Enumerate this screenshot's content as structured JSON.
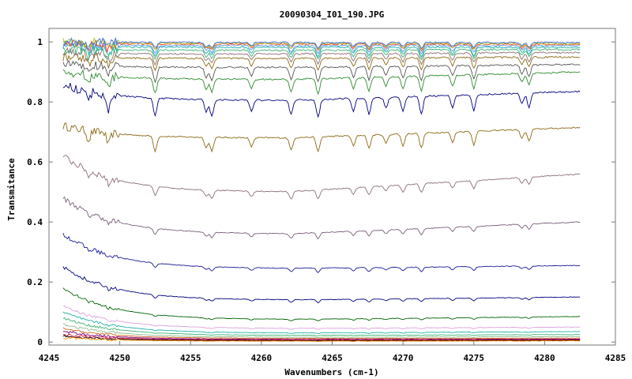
{
  "chart_data": {
    "type": "line",
    "title": "20090304_I01_190.JPG",
    "xlabel": "Wavenumbers (cm-1)",
    "ylabel": "Transmitance",
    "xlim": [
      4245,
      4285
    ],
    "ylim": [
      -0.01,
      1.045
    ],
    "x_ticks": [
      4245,
      4250,
      4255,
      4260,
      4265,
      4270,
      4275,
      4280,
      4285
    ],
    "y_ticks": [
      0,
      0.2,
      0.4,
      0.6,
      0.8,
      1
    ],
    "x_tick_labels": [
      "4245",
      "4250",
      "4255",
      "4260",
      "4265",
      "4270",
      "4275",
      "4280",
      "4285"
    ],
    "y_tick_labels": [
      "0",
      "0.2",
      "0.4",
      "0.6",
      "0.8",
      "1"
    ],
    "grid": false,
    "legend": "none",
    "x_range_of_data": [
      4246,
      4282.5
    ],
    "absorption_lines": [
      4247.8,
      4249.2,
      4252.5,
      4256.1,
      4256.5,
      4259.3,
      4262.1,
      4264.0,
      4266.5,
      4267.6,
      4268.8,
      4270.0,
      4271.3,
      4273.5,
      4275.0,
      4278.4,
      4278.9
    ],
    "series": [
      {
        "start": 0.72,
        "plateau": 0.68,
        "end": 0.715,
        "depth": 0.05,
        "color": "#8b6914"
      },
      {
        "start": 0.62,
        "plateau": 0.5,
        "end": 0.56,
        "depth": 0.03,
        "color": "#8b6f75"
      },
      {
        "start": 0.48,
        "plateau": 0.36,
        "end": 0.4,
        "depth": 0.02,
        "color": "#7a5f7a"
      },
      {
        "start": 0.36,
        "plateau": 0.245,
        "end": 0.255,
        "depth": 0.015,
        "color": "#1a1a99"
      },
      {
        "start": 0.25,
        "plateau": 0.14,
        "end": 0.15,
        "depth": 0.01,
        "color": "#000080"
      },
      {
        "start": 0.18,
        "plateau": 0.075,
        "end": 0.085,
        "depth": 0.006,
        "color": "#006400"
      },
      {
        "start": 0.12,
        "plateau": 0.045,
        "end": 0.05,
        "depth": 0.004,
        "color": "#dda0dd"
      },
      {
        "start": 0.1,
        "plateau": 0.03,
        "end": 0.035,
        "depth": 0.003,
        "color": "#20b2aa"
      },
      {
        "start": 0.08,
        "plateau": 0.022,
        "end": 0.025,
        "depth": 0.002,
        "color": "#3cb371"
      },
      {
        "start": 0.06,
        "plateau": 0.016,
        "end": 0.018,
        "depth": 0.002,
        "color": "#8fbc8f"
      },
      {
        "start": 0.045,
        "plateau": 0.012,
        "end": 0.013,
        "depth": 0.001,
        "color": "#d2691e"
      },
      {
        "start": 0.035,
        "plateau": 0.009,
        "end": 0.01,
        "depth": 0.001,
        "color": "#800080"
      },
      {
        "start": 0.025,
        "plateau": 0.007,
        "end": 0.008,
        "depth": 0.001,
        "color": "#dc143c"
      },
      {
        "start": 0.02,
        "plateau": 0.005,
        "end": 0.006,
        "depth": 0.001,
        "color": "#000000"
      },
      {
        "start": 0.015,
        "plateau": 0.003,
        "end": 0.004,
        "depth": 0.001,
        "color": "#ff8c00"
      },
      {
        "start": 0.855,
        "plateau": 0.805,
        "end": 0.835,
        "depth": 0.06,
        "color": "#000080"
      },
      {
        "start": 0.9,
        "plateau": 0.875,
        "end": 0.9,
        "depth": 0.05,
        "color": "#2e8b2e"
      },
      {
        "start": 0.925,
        "plateau": 0.915,
        "end": 0.925,
        "depth": 0.05,
        "color": "#555555"
      },
      {
        "start": 0.95,
        "plateau": 0.945,
        "end": 0.95,
        "depth": 0.04,
        "color": "#8b6914"
      },
      {
        "start": 0.965,
        "plateau": 0.96,
        "end": 0.965,
        "depth": 0.035,
        "color": "#8b6f75"
      },
      {
        "start": 0.975,
        "plateau": 0.972,
        "end": 0.975,
        "depth": 0.03,
        "color": "#3cb371"
      },
      {
        "start": 0.985,
        "plateau": 0.982,
        "end": 0.982,
        "depth": 0.03,
        "color": "#20b2aa"
      },
      {
        "start": 0.99,
        "plateau": 0.988,
        "end": 0.988,
        "depth": 0.025,
        "color": "#6495ed"
      },
      {
        "start": 0.995,
        "plateau": 0.993,
        "end": 0.992,
        "depth": 0.02,
        "color": "#ff4500"
      },
      {
        "start": 0.998,
        "plateau": 0.996,
        "end": 0.995,
        "depth": 0.02,
        "color": "#9acd32"
      },
      {
        "start": 1.0,
        "plateau": 0.998,
        "end": 0.998,
        "depth": 0.018,
        "color": "#4169e1"
      }
    ]
  }
}
